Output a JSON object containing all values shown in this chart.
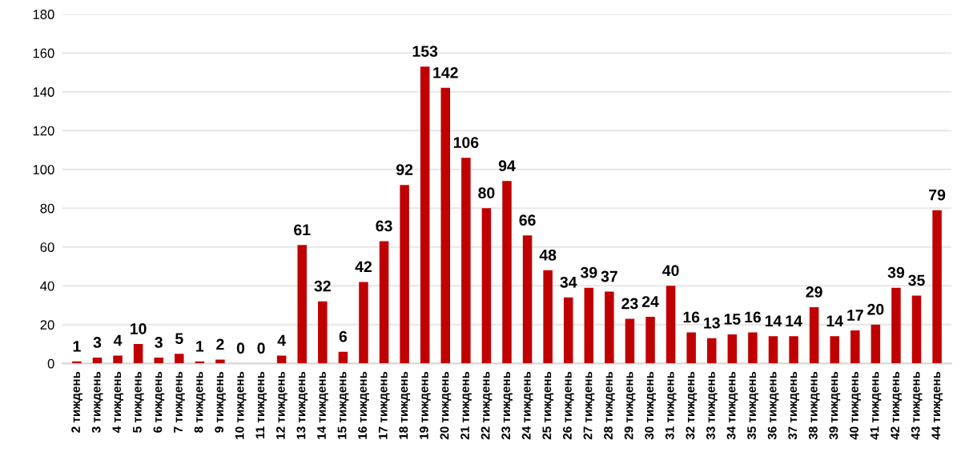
{
  "chart_data": {
    "type": "bar",
    "categories": [
      "2 тиждень",
      "3 тиждень",
      "4 тиждень",
      "5 тиждень",
      "6 тиждень",
      "7 тиждень",
      "8 тиждень",
      "9 тиждень",
      "10 тиждень",
      "11 тиждень",
      "12 тиждень",
      "13 тиждень",
      "14 тиждень",
      "15 тиждень",
      "16 тиждень",
      "17 тиждень",
      "18 тиждень",
      "19 тиждень",
      "20 тиждень",
      "21 тиждень",
      "22 тиждень",
      "23 тиждень",
      "24 тиждень",
      "25 тиждень",
      "26 тиждень",
      "27 тиждень",
      "28 тиждень",
      "29 тиждень",
      "30 тиждень",
      "31 тиждень",
      "32 тиждень",
      "33 тиждень",
      "34 тиждень",
      "35 тиждень",
      "36 тиждень",
      "37 тиждень",
      "38 тиждень",
      "39 тиждень",
      "40 тиждень",
      "41 тиждень",
      "42 тиждень",
      "43 тиждень",
      "44 тиждень"
    ],
    "values": [
      1,
      3,
      4,
      10,
      3,
      5,
      1,
      2,
      0,
      0,
      4,
      61,
      32,
      6,
      42,
      63,
      92,
      153,
      142,
      106,
      80,
      94,
      66,
      48,
      34,
      39,
      37,
      23,
      24,
      40,
      16,
      13,
      15,
      16,
      14,
      14,
      29,
      14,
      17,
      20,
      39,
      35,
      79
    ],
    "color": "#c00000",
    "ylim": [
      0,
      180
    ],
    "yticks": [
      0,
      20,
      40,
      60,
      80,
      100,
      120,
      140,
      160,
      180
    ],
    "grid": "y",
    "data_labels": true
  }
}
